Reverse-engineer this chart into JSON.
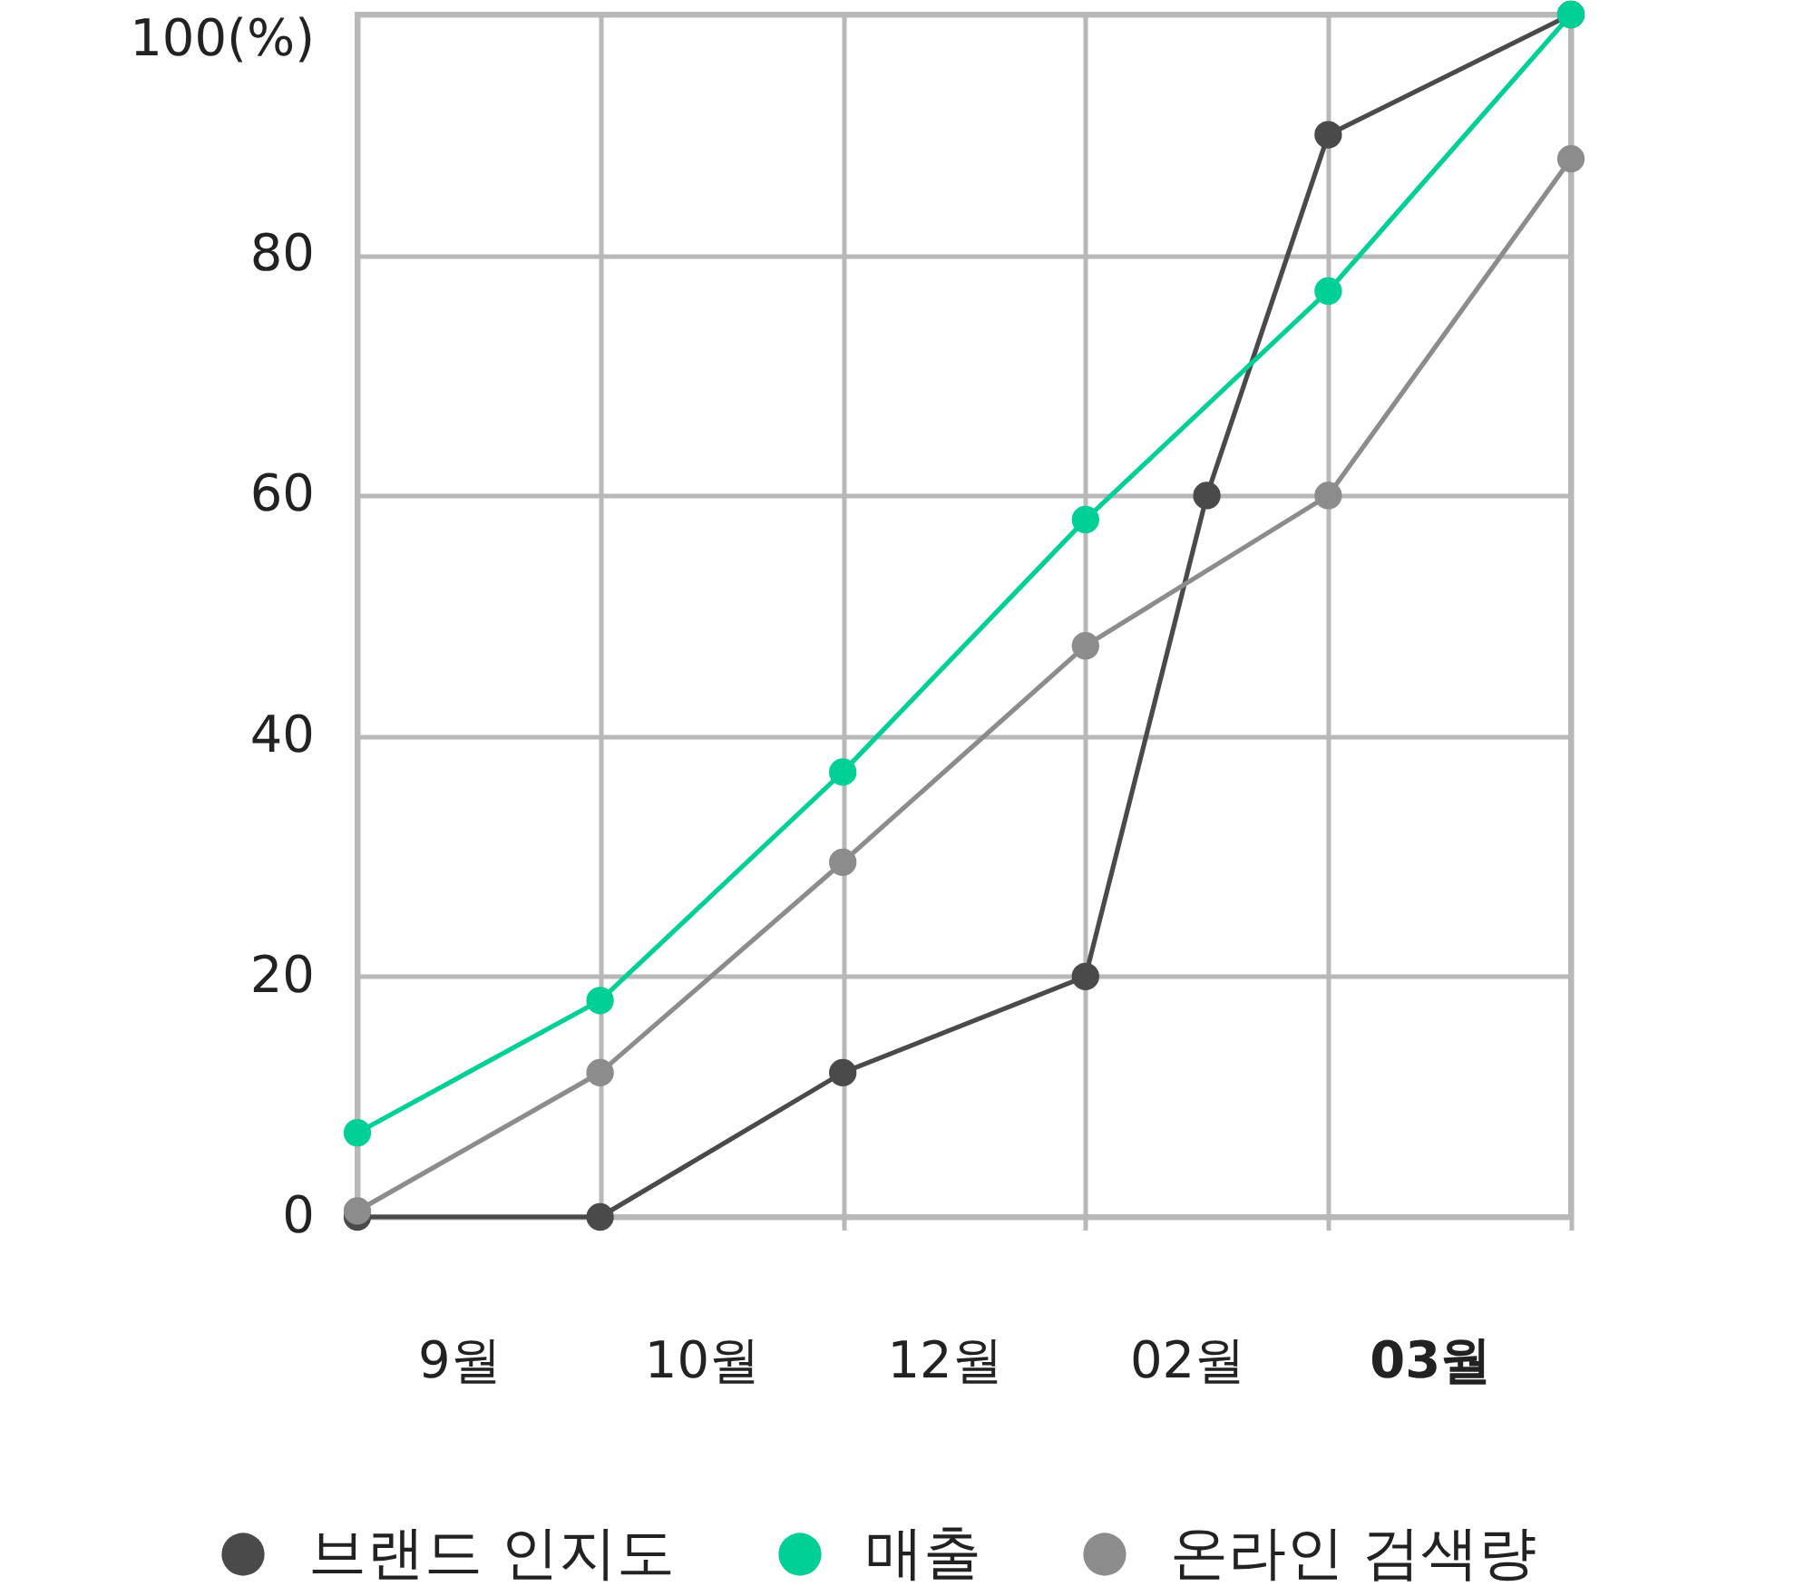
{
  "chart_data": {
    "type": "line",
    "categories": [
      null,
      "9월",
      null,
      "10월",
      null,
      "12월",
      null,
      "02월",
      null,
      "03월",
      null
    ],
    "ylim": [
      0,
      100
    ],
    "yticks": [
      0,
      20,
      40,
      60,
      80,
      {
        "value": 100,
        "label": "100(%)"
      }
    ],
    "series": [
      {
        "name": "브랜드 인지도",
        "color": "#4a4a4a",
        "values": [
          0,
          null,
          0,
          null,
          12,
          null,
          20,
          60,
          90,
          null,
          100
        ]
      },
      {
        "name": "매출",
        "color": "#00cf96",
        "values": [
          7,
          null,
          18,
          null,
          37,
          null,
          58,
          null,
          77,
          null,
          100
        ]
      },
      {
        "name": "온라인 검색량",
        "color": "#8c8c8c",
        "values": [
          0.5,
          null,
          12,
          null,
          29.5,
          null,
          47.5,
          null,
          60,
          null,
          88
        ]
      }
    ],
    "grid": true,
    "legend": "bottom",
    "marker": "circle",
    "line_style": "solid"
  }
}
